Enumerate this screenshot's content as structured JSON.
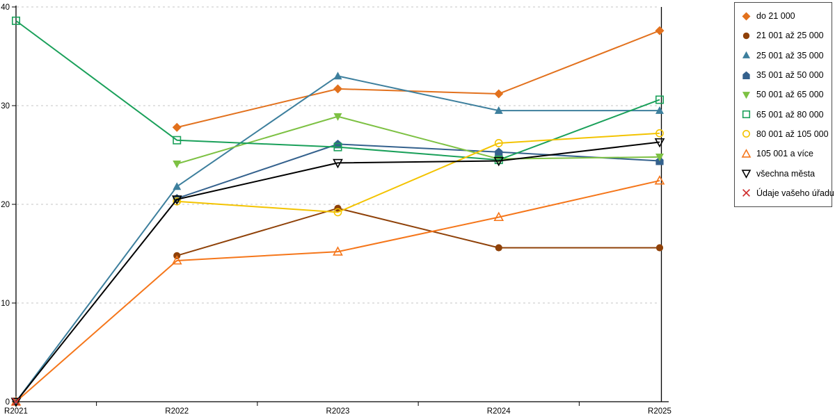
{
  "chart_data": {
    "type": "line",
    "title": "",
    "xlabel": "",
    "ylabel": "",
    "categories": [
      "R2021",
      "R2022",
      "R2023",
      "R2024",
      "R2025"
    ],
    "yticks": [
      0,
      10,
      20,
      30,
      40
    ],
    "ylim": [
      0,
      40
    ],
    "grid": "horizontal-dashed",
    "legend_position": "right",
    "axis_color": "#000000",
    "gridline_color": "#c4c4c4",
    "series": [
      {
        "name": "do 21 000",
        "color": "#e2711d",
        "marker": "diamond",
        "filled": true,
        "values": [
          null,
          27.8,
          31.7,
          31.2,
          37.6
        ]
      },
      {
        "name": "21 001 až 25 000",
        "color": "#8f4108",
        "marker": "circle",
        "filled": true,
        "values": [
          null,
          14.8,
          19.6,
          15.6,
          15.6
        ]
      },
      {
        "name": "25 001 až 35 000",
        "color": "#3d7f9d",
        "marker": "triangle-up",
        "filled": true,
        "values": [
          0,
          21.8,
          33.0,
          29.5,
          29.5
        ]
      },
      {
        "name": "35 001 až 50 000",
        "color": "#34618d",
        "marker": "pentagon",
        "filled": true,
        "values": [
          null,
          20.6,
          26.1,
          25.3,
          24.4
        ]
      },
      {
        "name": "50 001 až 65 000",
        "color": "#7dc143",
        "marker": "triangle-down",
        "filled": true,
        "values": [
          null,
          24.1,
          28.9,
          24.6,
          24.8
        ]
      },
      {
        "name": "65 001 až 80 000",
        "color": "#1aa05a",
        "marker": "square",
        "filled": false,
        "values": [
          38.6,
          26.5,
          25.8,
          24.5,
          30.6
        ]
      },
      {
        "name": "80 001 až 105 000",
        "color": "#f3c300",
        "marker": "circle",
        "filled": false,
        "values": [
          null,
          20.3,
          19.2,
          26.2,
          27.2
        ]
      },
      {
        "name": "105 001 a více",
        "color": "#f5761a",
        "marker": "triangle-up",
        "filled": false,
        "values": [
          0,
          14.3,
          15.2,
          18.7,
          22.4
        ]
      },
      {
        "name": "všechna města",
        "color": "#000000",
        "marker": "triangle-down",
        "filled": false,
        "values": [
          0,
          20.5,
          24.2,
          24.4,
          26.3
        ]
      },
      {
        "name": "Údaje vašeho úřadu",
        "color": "#cf2d2d",
        "marker": "x",
        "filled": false,
        "values": [
          0,
          null,
          null,
          null,
          null
        ]
      }
    ]
  }
}
